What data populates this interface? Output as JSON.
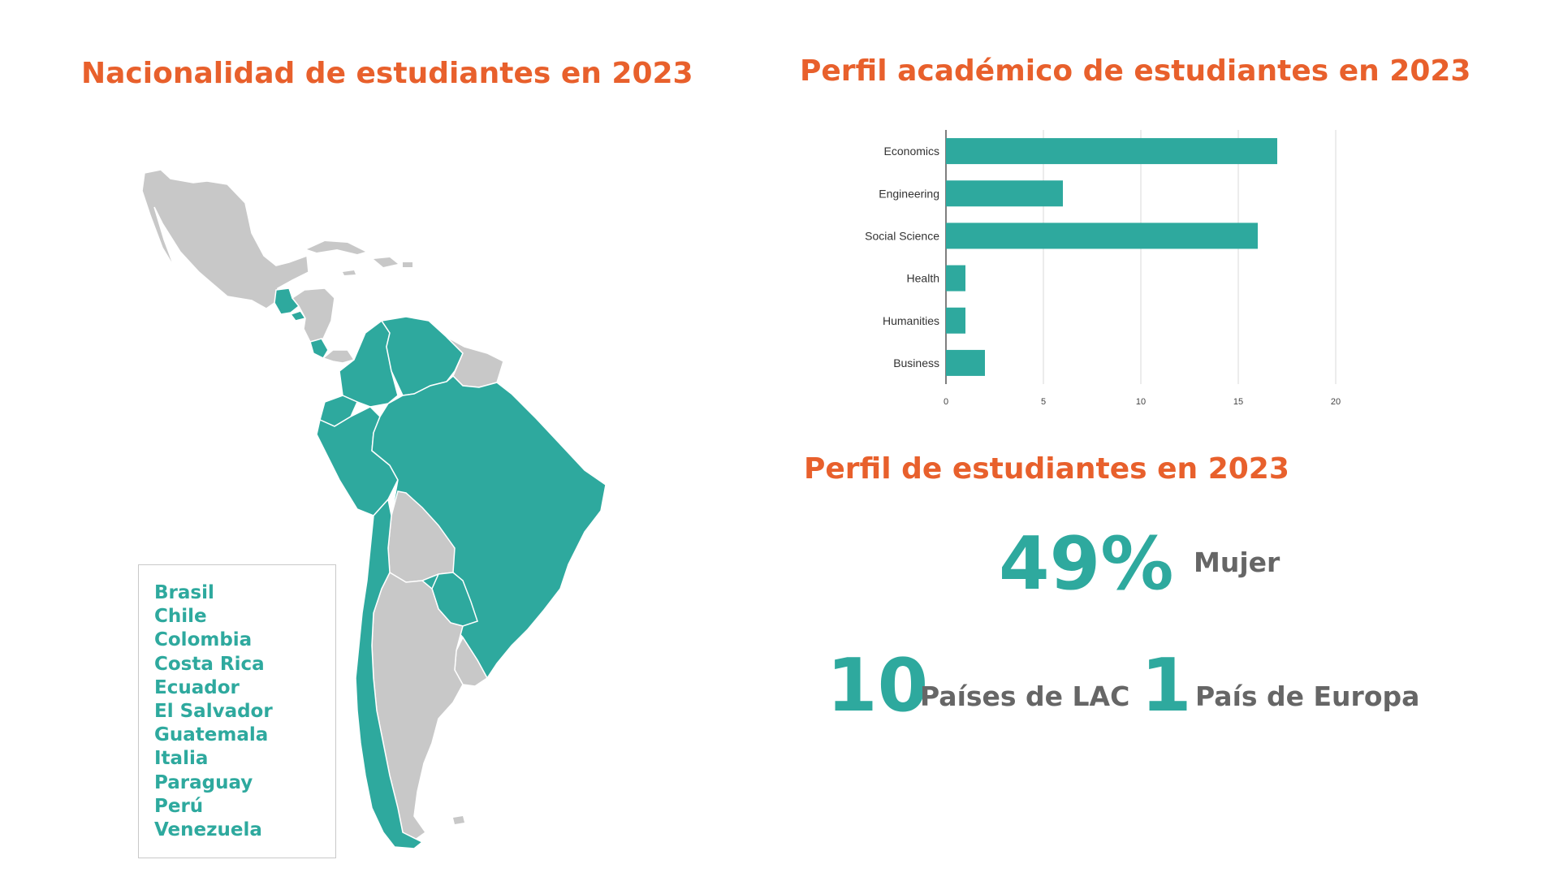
{
  "colors": {
    "accent": "#e8602c",
    "teal": "#2ea99e",
    "gray_region": "#c8c8c8",
    "stat_label": "#666666"
  },
  "map": {
    "title": "Nacionalidad de estudiantes en 2023",
    "countries": [
      "Brasil",
      "Chile",
      "Colombia",
      "Costa Rica",
      "Ecuador",
      "El Salvador",
      "Guatemala",
      "Italia",
      "Paraguay",
      "Perú",
      "Venezuela"
    ]
  },
  "chart_data": {
    "type": "bar",
    "orientation": "horizontal",
    "title": "Perfil académico de estudiantes en 2023",
    "categories": [
      "Economics",
      "Engineering",
      "Social Science",
      "Health",
      "Humanities",
      "Business"
    ],
    "values": [
      17,
      6,
      16,
      1,
      1,
      2
    ],
    "xlim": [
      0,
      20
    ],
    "xticks": [
      0,
      5,
      10,
      15,
      20
    ],
    "grid": true,
    "color": "#2ea99e"
  },
  "profile": {
    "title": "Perfil de estudiantes en 2023",
    "women_value": "49%",
    "women_label": "Mujer",
    "lac_value": "10",
    "lac_label": "Países de LAC",
    "europe_value": "1",
    "europe_label": "País de Europa"
  }
}
